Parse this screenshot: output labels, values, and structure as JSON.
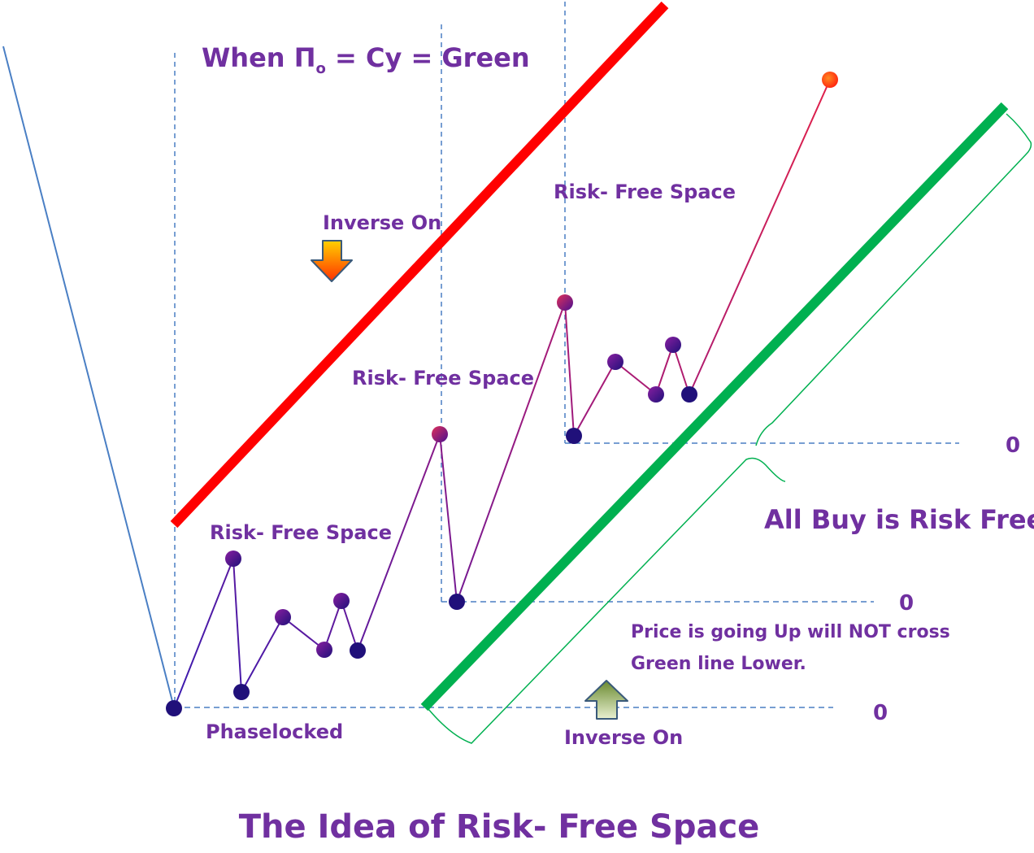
{
  "title": "The Idea of Risk- Free Space",
  "formula": {
    "prefix": "When ",
    "pi": "Π",
    "subscript": "o",
    "suffix": " = Cy = Green"
  },
  "labels": {
    "inverse_on_top": "Inverse On",
    "inverse_on_bottom": "Inverse On",
    "risk_free_1": "Risk- Free Space",
    "risk_free_2": "Risk- Free Space",
    "risk_free_3": "Risk- Free Space",
    "phaselocked": "Phaselocked",
    "all_buy": "All Buy is Risk Free",
    "price_line1": "Price is going Up will NOT cross",
    "price_line2": "Green line Lower."
  },
  "zero_labels": [
    "0",
    "0",
    "0"
  ],
  "colors": {
    "text": "#7030a0",
    "upper_line": "#ff0000",
    "lower_line": "#00b050",
    "guide": "#4a7fc4",
    "node_dark": "#20107a",
    "node_purple": "#8a1fa0",
    "path_start": "#5a1aa0",
    "path_end": "#e0204a"
  },
  "icons": {
    "down_arrow": "down-arrow-icon",
    "up_arrow": "up-arrow-icon"
  }
}
